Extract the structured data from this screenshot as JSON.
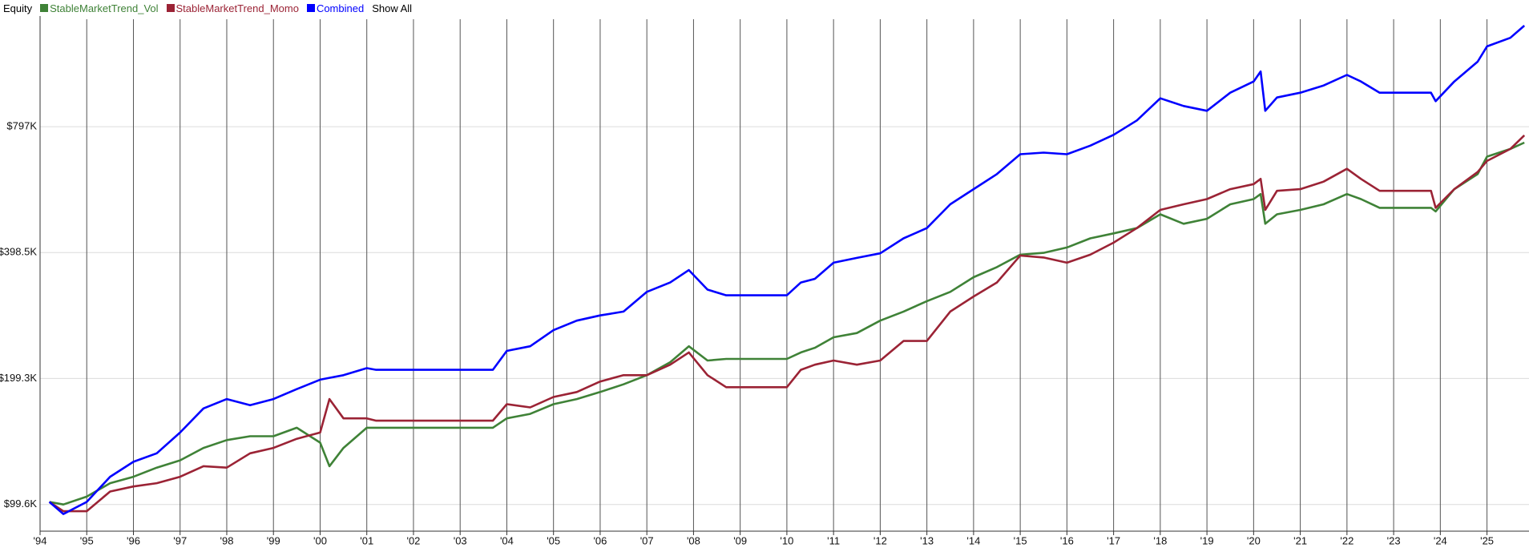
{
  "chart_data": {
    "type": "line",
    "title": "Equity",
    "show_all_label": "Show All",
    "log_scale": true,
    "grid": true,
    "x": [
      1994.2,
      1994.5,
      1995.0,
      1995.5,
      1996.0,
      1996.5,
      1997.0,
      1997.5,
      1998.0,
      1998.5,
      1999.0,
      1999.5,
      2000.0,
      2000.2,
      2000.5,
      2001.0,
      2001.2,
      2003.7,
      2004.0,
      2004.5,
      2005.0,
      2005.5,
      2006.0,
      2006.5,
      2007.0,
      2007.5,
      2007.9,
      2008.3,
      2008.7,
      2010.0,
      2010.3,
      2010.6,
      2011.0,
      2011.5,
      2012.0,
      2012.5,
      2013.0,
      2013.5,
      2014.0,
      2014.5,
      2015.0,
      2015.5,
      2016.0,
      2016.5,
      2017.0,
      2017.5,
      2018.0,
      2018.5,
      2019.0,
      2019.5,
      2020.0,
      2020.15,
      2020.25,
      2020.5,
      2021.0,
      2021.5,
      2022.0,
      2022.3,
      2022.7,
      2023.8,
      2023.9,
      2024.3,
      2024.8,
      2025.0,
      2025.5,
      2025.8
    ],
    "series": [
      {
        "name": "StableMarketTrend_Vol",
        "color": "#3f8237",
        "values": [
          101000,
          99600,
          104000,
          112000,
          116000,
          122000,
          127000,
          136000,
          142000,
          145000,
          145000,
          152000,
          140000,
          123000,
          136000,
          152000,
          152000,
          152000,
          160000,
          164000,
          173000,
          178000,
          185000,
          193000,
          203000,
          218000,
          238000,
          220000,
          222000,
          222000,
          230000,
          236000,
          250000,
          256000,
          274000,
          288000,
          305000,
          321000,
          348000,
          368000,
          394000,
          398000,
          410000,
          431000,
          443000,
          456000,
          492000,
          467000,
          480000,
          520000,
          535000,
          550000,
          467000,
          492000,
          504000,
          520000,
          550000,
          535000,
          510000,
          510000,
          500000,
          565000,
          614000,
          676000,
          705000,
          730000
        ]
      },
      {
        "name": "StableMarketTrend_Momo",
        "color": "#9b2335",
        "values": [
          101000,
          96000,
          96000,
          107000,
          110000,
          112000,
          116000,
          123000,
          122000,
          132000,
          136000,
          143000,
          148000,
          178000,
          160000,
          160000,
          158000,
          158000,
          173000,
          170000,
          180000,
          185000,
          196000,
          203000,
          203000,
          215000,
          230000,
          203000,
          190000,
          190000,
          209000,
          215000,
          220000,
          215000,
          220000,
          245000,
          245000,
          288000,
          313000,
          338000,
          392000,
          388000,
          377000,
          394000,
          421000,
          456000,
          504000,
          520000,
          535000,
          565000,
          581000,
          598000,
          504000,
          560000,
          565000,
          589000,
          632000,
          598000,
          560000,
          560000,
          510000,
          565000,
          621000,
          660000,
          705000,
          760000
        ]
      },
      {
        "name": "Combined",
        "color": "#0000ff",
        "values": [
          101000,
          94500,
          101000,
          116000,
          126000,
          132000,
          148000,
          169000,
          178000,
          172000,
          178000,
          188000,
          198000,
          200000,
          203000,
          211000,
          209000,
          209000,
          232000,
          238000,
          260000,
          274000,
          282000,
          288000,
          321000,
          338000,
          362000,
          325000,
          315000,
          315000,
          338000,
          345000,
          377000,
          387000,
          397000,
          431000,
          456000,
          520000,
          565000,
          614000,
          685000,
          691000,
          685000,
          718000,
          762000,
          825000,
          932000,
          893000,
          870000,
          961000,
          1022000,
          1080000,
          870000,
          936000,
          961000,
          1000000,
          1060000,
          1022000,
          961000,
          961000,
          917000,
          1022000,
          1140000,
          1240000,
          1300000,
          1390000
        ]
      }
    ],
    "xlim": [
      1994,
      2025.9
    ],
    "xticks": [
      {
        "value": 1994,
        "label": "'94"
      },
      {
        "value": 1995,
        "label": "'95"
      },
      {
        "value": 1996,
        "label": "'96"
      },
      {
        "value": 1997,
        "label": "'97"
      },
      {
        "value": 1998,
        "label": "'98"
      },
      {
        "value": 1999,
        "label": "'99"
      },
      {
        "value": 2000,
        "label": "'00"
      },
      {
        "value": 2001,
        "label": "'01"
      },
      {
        "value": 2002,
        "label": "'02"
      },
      {
        "value": 2003,
        "label": "'03"
      },
      {
        "value": 2004,
        "label": "'04"
      },
      {
        "value": 2005,
        "label": "'05"
      },
      {
        "value": 2006,
        "label": "'06"
      },
      {
        "value": 2007,
        "label": "'07"
      },
      {
        "value": 2008,
        "label": "'08"
      },
      {
        "value": 2009,
        "label": "'09"
      },
      {
        "value": 2010,
        "label": "'10"
      },
      {
        "value": 2011,
        "label": "'11"
      },
      {
        "value": 2012,
        "label": "'12"
      },
      {
        "value": 2013,
        "label": "'13"
      },
      {
        "value": 2014,
        "label": "'14"
      },
      {
        "value": 2015,
        "label": "'15"
      },
      {
        "value": 2016,
        "label": "'16"
      },
      {
        "value": 2017,
        "label": "'17"
      },
      {
        "value": 2018,
        "label": "'18"
      },
      {
        "value": 2019,
        "label": "'19"
      },
      {
        "value": 2020,
        "label": "'20"
      },
      {
        "value": 2021,
        "label": "'21"
      },
      {
        "value": 2022,
        "label": "'22"
      },
      {
        "value": 2023,
        "label": "'23"
      },
      {
        "value": 2024,
        "label": "'24"
      },
      {
        "value": 2025,
        "label": "'25"
      }
    ],
    "ylim": [
      86000,
      1440000
    ],
    "yticks": [
      {
        "value": 99600,
        "label": "$99.6K"
      },
      {
        "value": 199300,
        "label": "$199.3K"
      },
      {
        "value": 398500,
        "label": "$398.5K"
      },
      {
        "value": 797000,
        "label": "$797K"
      }
    ]
  }
}
